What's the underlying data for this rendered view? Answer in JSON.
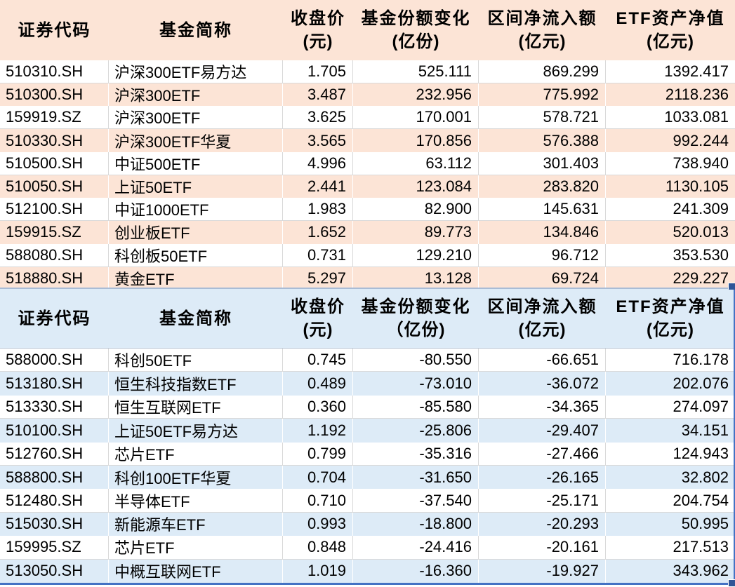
{
  "colors": {
    "stripe_orange": "#FCE4D6",
    "stripe_blue": "#DDEBF7",
    "grid_line": "#D9D9D9",
    "selection_blue": "#4472C4",
    "divider_blue": "#A9BCD6",
    "fill_handle": "#2F5597"
  },
  "tables": [
    {
      "name": "net-inflow-table",
      "headers": [
        {
          "label": "证券代码",
          "unit": ""
        },
        {
          "label": "基金简称",
          "unit": ""
        },
        {
          "label": "收盘价",
          "unit": "(元)"
        },
        {
          "label": "基金份额变化",
          "unit": "(亿份)"
        },
        {
          "label": "区间净流入额",
          "unit": "(亿元)"
        },
        {
          "label": "ETF资产净值",
          "unit": "(亿元)"
        }
      ],
      "rows": [
        [
          "510310.SH",
          "沪深300ETF易方达",
          "1.705",
          "525.111",
          "869.299",
          "1392.417"
        ],
        [
          "510300.SH",
          "沪深300ETF",
          "3.487",
          "232.956",
          "775.992",
          "2118.236"
        ],
        [
          "159919.SZ",
          "沪深300ETF",
          "3.625",
          "170.001",
          "578.721",
          "1033.081"
        ],
        [
          "510330.SH",
          "沪深300ETF华夏",
          "3.565",
          "170.856",
          "576.388",
          "992.244"
        ],
        [
          "510500.SH",
          "中证500ETF",
          "4.996",
          "63.112",
          "301.403",
          "738.940"
        ],
        [
          "510050.SH",
          "上证50ETF",
          "2.441",
          "123.084",
          "283.820",
          "1130.105"
        ],
        [
          "512100.SH",
          "中证1000ETF",
          "1.983",
          "82.900",
          "145.631",
          "241.309"
        ],
        [
          "159915.SZ",
          "创业板ETF",
          "1.652",
          "89.773",
          "134.846",
          "520.013"
        ],
        [
          "588080.SH",
          "科创板50ETF",
          "0.731",
          "129.210",
          "96.712",
          "353.530"
        ],
        [
          "518880.SH",
          "黄金ETF",
          "5.297",
          "13.128",
          "69.724",
          "229.227"
        ]
      ]
    },
    {
      "name": "net-outflow-table",
      "headers": [
        {
          "label": "证券代码",
          "unit": ""
        },
        {
          "label": "基金简称",
          "unit": ""
        },
        {
          "label": "收盘价",
          "unit": "(元)"
        },
        {
          "label": "基金份额变化",
          "unit": "（亿份)"
        },
        {
          "label": "区间净流入额",
          "unit": "(亿元)"
        },
        {
          "label": "ETF资产净值",
          "unit": "(亿元)"
        }
      ],
      "rows": [
        [
          "588000.SH",
          "科创50ETF",
          "0.745",
          "-80.550",
          "-66.651",
          "716.178"
        ],
        [
          "513180.SH",
          "恒生科技指数ETF",
          "0.489",
          "-73.010",
          "-36.072",
          "202.076"
        ],
        [
          "513330.SH",
          "恒生互联网ETF",
          "0.360",
          "-85.580",
          "-34.365",
          "274.097"
        ],
        [
          "510100.SH",
          "上证50ETF易方达",
          "1.192",
          "-25.806",
          "-29.407",
          "34.151"
        ],
        [
          "512760.SH",
          "芯片ETF",
          "0.799",
          "-35.316",
          "-27.466",
          "124.943"
        ],
        [
          "588800.SH",
          "科创100ETF华夏",
          "0.704",
          "-31.650",
          "-26.165",
          "32.802"
        ],
        [
          "512480.SH",
          "半导体ETF",
          "0.710",
          "-37.540",
          "-25.171",
          "204.754"
        ],
        [
          "515030.SH",
          "新能源车ETF",
          "0.993",
          "-18.800",
          "-20.293",
          "50.995"
        ],
        [
          "159995.SZ",
          "芯片ETF",
          "0.848",
          "-24.416",
          "-20.161",
          "217.513"
        ],
        [
          "513050.SH",
          "中概互联网ETF",
          "1.019",
          "-16.360",
          "-19.927",
          "343.962"
        ]
      ]
    }
  ]
}
